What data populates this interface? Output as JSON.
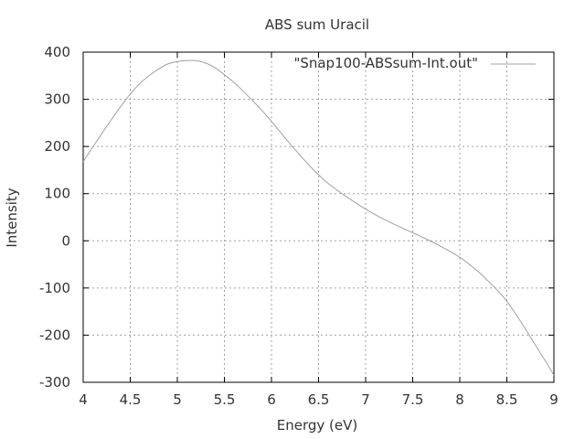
{
  "chart_data": {
    "type": "line",
    "title": "ABS sum Uracil",
    "xlabel": "Energy (eV)",
    "ylabel": "Intensity",
    "xlim": [
      4,
      9
    ],
    "ylim": [
      -300,
      400
    ],
    "xticks": [
      4,
      4.5,
      5,
      5.5,
      6,
      6.5,
      7,
      7.5,
      8,
      8.5,
      9
    ],
    "xtick_labels": [
      "4",
      "4.5",
      "5",
      "5.5",
      "6",
      "6.5",
      "7",
      "7.5",
      "8",
      "8.5",
      "9"
    ],
    "yticks": [
      -300,
      -200,
      -100,
      0,
      100,
      200,
      300,
      400
    ],
    "ytick_labels": [
      "-300",
      "-200",
      "-100",
      "0",
      "100",
      "200",
      "300",
      "400"
    ],
    "grid": true,
    "legend_position": "top-right",
    "series": [
      {
        "name": "\"Snap100-ABSsum-Int.out\"",
        "color": "#a0a0a0",
        "x": [
          4.0,
          4.1,
          4.2,
          4.3,
          4.4,
          4.5,
          4.6,
          4.7,
          4.8,
          4.9,
          5.0,
          5.1,
          5.2,
          5.3,
          5.4,
          5.5,
          5.6,
          5.7,
          5.8,
          5.9,
          6.0,
          6.2,
          6.4,
          6.5,
          6.6,
          6.8,
          7.0,
          7.2,
          7.4,
          7.5,
          7.6,
          7.8,
          8.0,
          8.1,
          8.2,
          8.3,
          8.4,
          8.5,
          8.6,
          8.7,
          8.8,
          8.9,
          9.0
        ],
        "y": [
          168,
          198,
          228,
          257,
          285,
          311,
          333,
          350,
          364,
          375,
          380,
          382,
          382,
          377,
          367,
          352,
          336,
          317,
          297,
          276,
          253,
          205,
          160,
          140,
          122,
          93,
          67,
          45,
          26,
          17,
          8,
          -12,
          -35,
          -50,
          -66,
          -85,
          -105,
          -128,
          -157,
          -188,
          -220,
          -252,
          -285
        ]
      }
    ]
  }
}
